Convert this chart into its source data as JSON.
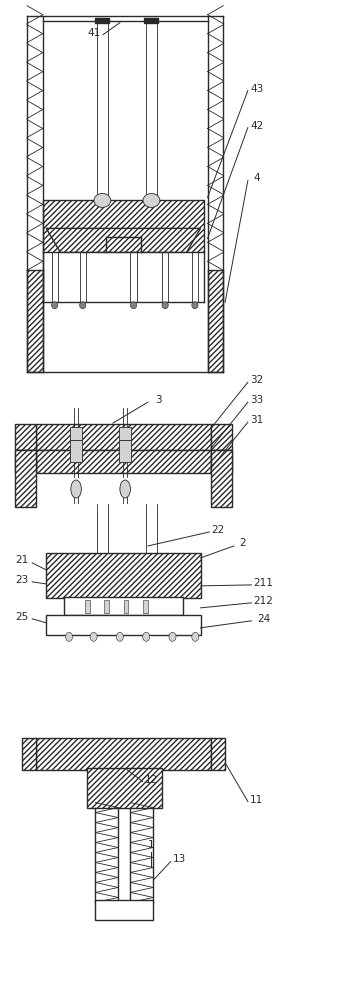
{
  "fig_width": 3.52,
  "fig_height": 10.0,
  "dpi": 100,
  "bg_color": "#ffffff",
  "lc": "#2a2a2a",
  "lw_main": 1.0,
  "lw_thin": 0.6,
  "font_size": 7.5
}
